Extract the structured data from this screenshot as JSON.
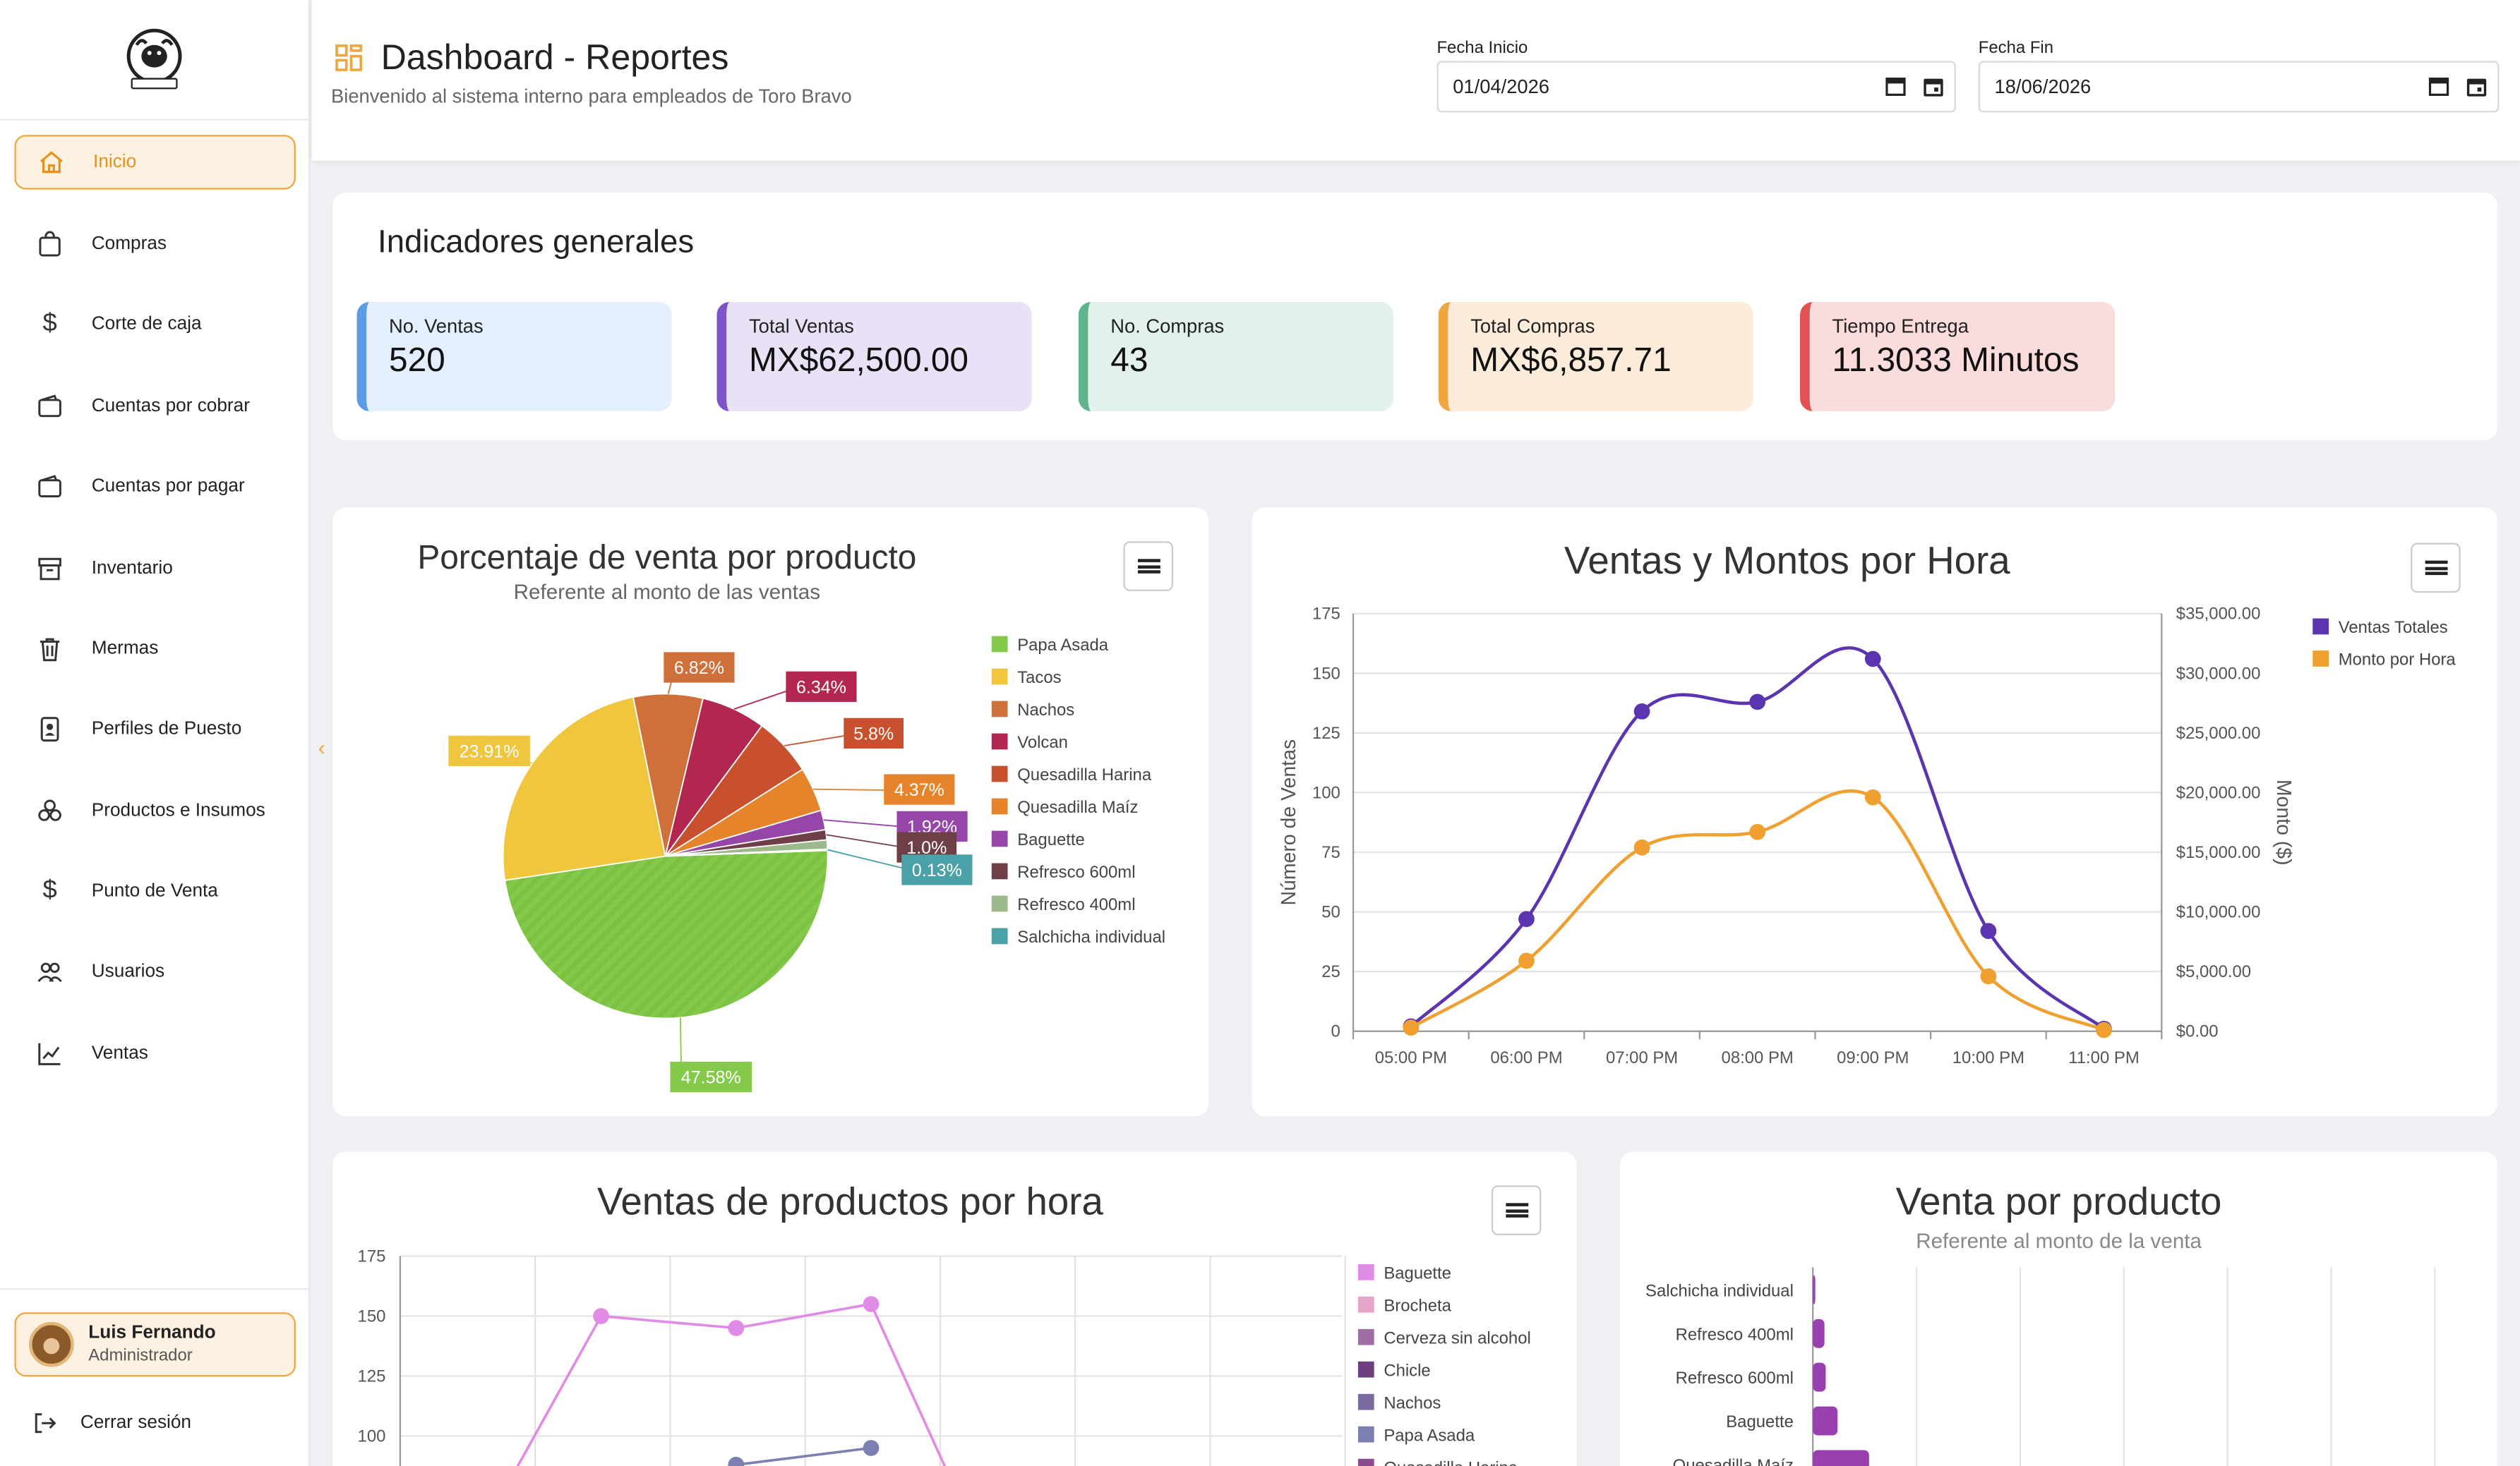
{
  "sidebar": {
    "items": [
      {
        "label": "Inicio",
        "icon": "home-icon",
        "active": true
      },
      {
        "label": "Compras",
        "icon": "bag-icon"
      },
      {
        "label": "Corte de caja",
        "icon": "dollar-icon"
      },
      {
        "label": "Cuentas por cobrar",
        "icon": "wallet-icon"
      },
      {
        "label": "Cuentas por pagar",
        "icon": "wallet-icon"
      },
      {
        "label": "Inventario",
        "icon": "archive-icon"
      },
      {
        "label": "Mermas",
        "icon": "trash-icon"
      },
      {
        "label": "Perfiles de Puesto",
        "icon": "id-badge-icon"
      },
      {
        "label": "Productos e Insumos",
        "icon": "boxes-icon"
      },
      {
        "label": "Punto de Venta",
        "icon": "dollar-icon"
      },
      {
        "label": "Usuarios",
        "icon": "users-icon"
      },
      {
        "label": "Ventas",
        "icon": "trend-chart-icon"
      }
    ],
    "user": {
      "name": "Luis Fernando",
      "role": "Administrador"
    },
    "logout_label": "Cerrar sesión",
    "logo_text": "TORO BRAVO"
  },
  "header": {
    "title": "Dashboard - Reportes",
    "subtitle": "Bienvenido al sistema interno para empleados de Toro Bravo",
    "fecha_inicio_label": "Fecha Inicio",
    "fecha_inicio_value": "01/04/2026",
    "fecha_fin_label": "Fecha Fin",
    "fecha_fin_value": "18/06/2026"
  },
  "indicators": {
    "title": "Indicadores generales",
    "kpis": [
      {
        "label": "No. Ventas",
        "value": "520",
        "accent": "#5b9be8",
        "bg": "#e3effd"
      },
      {
        "label": "Total Ventas",
        "value": "MX$62,500.00",
        "accent": "#7e55c9",
        "bg": "#e9e2f6"
      },
      {
        "label": "No. Compras",
        "value": "43",
        "accent": "#5fb38f",
        "bg": "#e2f1ea"
      },
      {
        "label": "Total Compras",
        "value": "MX$6,857.71",
        "accent": "#f0a640",
        "bg": "#fcecd9"
      },
      {
        "label": "Tiempo Entrega",
        "value": "11.3033 Minutos",
        "accent": "#e25252",
        "bg": "#fadcdc"
      }
    ]
  },
  "chart_data": [
    {
      "type": "pie",
      "title": "Porcentaje de venta por producto",
      "subtitle": "Referente al monto de las ventas",
      "legend_position": "right",
      "slices": [
        {
          "name": "Papa Asada",
          "value": 47.58,
          "label": "47.58%",
          "color": "#84c94a"
        },
        {
          "name": "Tacos",
          "value": 23.91,
          "label": "23.91%",
          "color": "#f1c63f"
        },
        {
          "name": "Nachos",
          "value": 6.82,
          "label": "6.82%",
          "color": "#cf6f3a"
        },
        {
          "name": "Volcan",
          "value": 6.34,
          "label": "6.34%",
          "color": "#b32650"
        },
        {
          "name": "Quesadilla Harina",
          "value": 5.8,
          "label": "5.8%",
          "color": "#c9502f"
        },
        {
          "name": "Quesadilla Maíz",
          "value": 4.37,
          "label": "4.37%",
          "color": "#e5842a"
        },
        {
          "name": "Baguette",
          "value": 1.92,
          "label": "1.92%",
          "color": "#9646a8"
        },
        {
          "name": "Refresco 600ml",
          "value": 1.0,
          "label": "1.0%",
          "color": "#6e3f47"
        },
        {
          "name": "Refresco 400ml",
          "value": 0.9,
          "label": "",
          "color": "#9cb98b"
        },
        {
          "name": "Salchicha individual",
          "value": 0.13,
          "label": "0.13%",
          "color": "#4aa1a8"
        }
      ]
    },
    {
      "type": "line",
      "title": "Ventas y Montos por Hora",
      "legend_position": "top-right",
      "categories": [
        "05:00 PM",
        "06:00 PM",
        "07:00 PM",
        "08:00 PM",
        "09:00 PM",
        "10:00 PM",
        "11:00 PM"
      ],
      "ylabel": "Número de Ventas",
      "y2label": "Monto ($)",
      "ylim": [
        0,
        175
      ],
      "y2lim": [
        0,
        35000
      ],
      "yticks": [
        "0",
        "25",
        "50",
        "75",
        "100",
        "125",
        "150",
        "175"
      ],
      "y2ticks": [
        "$0.00",
        "$5,000.00",
        "$10,000.00",
        "$15,000.00",
        "$20,000.00",
        "$25,000.00",
        "$30,000.00",
        "$35,000.00"
      ],
      "series": [
        {
          "name": "Ventas Totales",
          "axis": "left",
          "color": "#5b34b0",
          "values": [
            2,
            47,
            134,
            138,
            156,
            42,
            1
          ]
        },
        {
          "name": "Monto por Hora",
          "axis": "right",
          "color": "#f0a030",
          "values": [
            300,
            5900,
            15400,
            16700,
            19600,
            4600,
            100
          ]
        }
      ]
    },
    {
      "type": "line",
      "title": "Ventas de productos por hora",
      "legend_position": "right",
      "ylim": [
        100,
        175
      ],
      "yticks": [
        "100",
        "125",
        "150",
        "175"
      ],
      "series": [
        {
          "name": "Baguette",
          "color": "#e08ce6",
          "values": [
            null,
            150,
            145,
            155,
            null
          ]
        },
        {
          "name": "Brocheta",
          "color": "#e6a4c6"
        },
        {
          "name": "Cerveza sin alcohol",
          "color": "#9f6ea2"
        },
        {
          "name": "Chicle",
          "color": "#6e3f7e"
        },
        {
          "name": "Nachos",
          "color": "#7b6a9e"
        },
        {
          "name": "Papa Asada",
          "color": "#7c7fb0",
          "values": [
            null,
            null,
            88,
            95,
            null
          ]
        },
        {
          "name": "Quesadilla Harina",
          "color": "#8b4b8f"
        }
      ]
    },
    {
      "type": "bar",
      "orientation": "horizontal",
      "title": "Venta por producto",
      "subtitle": "Referente al monto de la venta",
      "categories": [
        "Salchicha individual",
        "Refresco 400ml",
        "Refresco 600ml",
        "Baguette",
        "Quesadilla Maíz"
      ],
      "values": [
        0.13,
        0.9,
        1.0,
        1.92,
        4.37
      ],
      "color": "#9a3fb0"
    }
  ]
}
